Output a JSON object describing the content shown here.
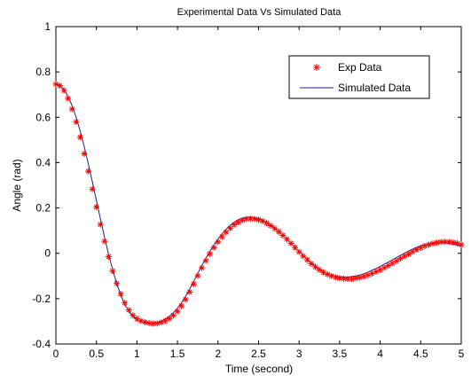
{
  "chart_data": {
    "type": "line",
    "title": "Experimental Data Vs Simulated Data",
    "xlabel": "Time (second)",
    "ylabel": "Angle (rad)",
    "xlim": [
      0,
      5
    ],
    "ylim": [
      -0.4,
      1
    ],
    "xticks": [
      0,
      0.5,
      1,
      1.5,
      2,
      2.5,
      3,
      3.5,
      4,
      4.5,
      5
    ],
    "yticks": [
      -0.4,
      -0.2,
      0,
      0.2,
      0.4,
      0.6,
      0.8,
      1
    ],
    "xtick_labels": [
      "0",
      "0.5",
      "1",
      "1.5",
      "2",
      "2.5",
      "3",
      "3.5",
      "4",
      "4.5",
      "5"
    ],
    "ytick_labels": [
      "-0.4",
      "-0.2",
      "0",
      "0.2",
      "0.4",
      "0.6",
      "0.8",
      "1"
    ],
    "grid": false,
    "legend_position": "top-right",
    "series": [
      {
        "name": "Exp Data",
        "style": "marker",
        "marker": "asterisk",
        "color": "#ff0000",
        "x": [
          0.0,
          0.05,
          0.1,
          0.15,
          0.2,
          0.25,
          0.3,
          0.35,
          0.4,
          0.45,
          0.5,
          0.55,
          0.6,
          0.65,
          0.7,
          0.75,
          0.8,
          0.85,
          0.9,
          0.95,
          1.0,
          1.05,
          1.1,
          1.15,
          1.2,
          1.25,
          1.3,
          1.35,
          1.4,
          1.45,
          1.5,
          1.55,
          1.6,
          1.65,
          1.7,
          1.75,
          1.8,
          1.85,
          1.9,
          1.95,
          2.0,
          2.05,
          2.1,
          2.15,
          2.2,
          2.25,
          2.3,
          2.35,
          2.4,
          2.45,
          2.5,
          2.55,
          2.6,
          2.65,
          2.7,
          2.75,
          2.8,
          2.85,
          2.9,
          2.95,
          3.0,
          3.05,
          3.1,
          3.15,
          3.2,
          3.25,
          3.3,
          3.35,
          3.4,
          3.45,
          3.5,
          3.55,
          3.6,
          3.65,
          3.7,
          3.75,
          3.8,
          3.85,
          3.9,
          3.95,
          4.0,
          4.05,
          4.1,
          4.15,
          4.2,
          4.25,
          4.3,
          4.35,
          4.4,
          4.45,
          4.5,
          4.55,
          4.6,
          4.65,
          4.7,
          4.75,
          4.8,
          4.85,
          4.9,
          4.95,
          5.0
        ],
        "y": [
          0.746,
          0.739,
          0.718,
          0.683,
          0.636,
          0.579,
          0.512,
          0.439,
          0.362,
          0.283,
          0.204,
          0.127,
          0.053,
          -0.015,
          -0.078,
          -0.133,
          -0.18,
          -0.219,
          -0.25,
          -0.273,
          -0.289,
          -0.298,
          -0.304,
          -0.308,
          -0.31,
          -0.309,
          -0.305,
          -0.298,
          -0.288,
          -0.274,
          -0.256,
          -0.232,
          -0.204,
          -0.171,
          -0.135,
          -0.099,
          -0.064,
          -0.032,
          -0.002,
          0.025,
          0.05,
          0.073,
          0.093,
          0.111,
          0.126,
          0.137,
          0.146,
          0.151,
          0.152,
          0.151,
          0.148,
          0.142,
          0.133,
          0.122,
          0.109,
          0.095,
          0.079,
          0.062,
          0.044,
          0.025,
          0.006,
          -0.012,
          -0.029,
          -0.046,
          -0.06,
          -0.073,
          -0.084,
          -0.093,
          -0.1,
          -0.106,
          -0.11,
          -0.112,
          -0.113,
          -0.113,
          -0.11,
          -0.107,
          -0.102,
          -0.096,
          -0.089,
          -0.081,
          -0.073,
          -0.064,
          -0.054,
          -0.044,
          -0.034,
          -0.023,
          -0.013,
          -0.003,
          0.007,
          0.016,
          0.024,
          0.032,
          0.038,
          0.043,
          0.047,
          0.05,
          0.051,
          0.05,
          0.048,
          0.044,
          0.038
        ]
      },
      {
        "name": "Simulated Data",
        "style": "line",
        "color": "#1f1f8f",
        "x": [
          0.0,
          0.05,
          0.1,
          0.15,
          0.2,
          0.25,
          0.3,
          0.35,
          0.4,
          0.45,
          0.5,
          0.55,
          0.6,
          0.65,
          0.7,
          0.75,
          0.8,
          0.85,
          0.9,
          0.95,
          1.0,
          1.05,
          1.1,
          1.15,
          1.2,
          1.25,
          1.3,
          1.35,
          1.4,
          1.45,
          1.5,
          1.55,
          1.6,
          1.65,
          1.7,
          1.75,
          1.8,
          1.85,
          1.9,
          1.95,
          2.0,
          2.05,
          2.1,
          2.15,
          2.2,
          2.25,
          2.3,
          2.35,
          2.4,
          2.45,
          2.5,
          2.55,
          2.6,
          2.65,
          2.7,
          2.75,
          2.8,
          2.85,
          2.9,
          2.95,
          3.0,
          3.05,
          3.1,
          3.15,
          3.2,
          3.25,
          3.3,
          3.35,
          3.4,
          3.45,
          3.5,
          3.55,
          3.6,
          3.65,
          3.7,
          3.75,
          3.8,
          3.85,
          3.9,
          3.95,
          4.0,
          4.05,
          4.1,
          4.15,
          4.2,
          4.25,
          4.3,
          4.35,
          4.4,
          4.45,
          4.5,
          4.55,
          4.6,
          4.65,
          4.7,
          4.75,
          4.8,
          4.85,
          4.9,
          4.95,
          5.0
        ],
        "y": [
          0.746,
          0.74,
          0.722,
          0.692,
          0.651,
          0.6,
          0.539,
          0.47,
          0.395,
          0.315,
          0.233,
          0.151,
          0.071,
          -0.004,
          -0.073,
          -0.133,
          -0.184,
          -0.225,
          -0.256,
          -0.278,
          -0.293,
          -0.302,
          -0.307,
          -0.309,
          -0.308,
          -0.305,
          -0.299,
          -0.29,
          -0.278,
          -0.262,
          -0.242,
          -0.218,
          -0.19,
          -0.158,
          -0.124,
          -0.089,
          -0.055,
          -0.022,
          0.009,
          0.037,
          0.063,
          0.086,
          0.106,
          0.123,
          0.137,
          0.148,
          0.155,
          0.159,
          0.16,
          0.158,
          0.154,
          0.147,
          0.137,
          0.125,
          0.111,
          0.096,
          0.08,
          0.062,
          0.044,
          0.026,
          0.008,
          -0.01,
          -0.027,
          -0.043,
          -0.057,
          -0.07,
          -0.081,
          -0.089,
          -0.096,
          -0.101,
          -0.104,
          -0.105,
          -0.105,
          -0.103,
          -0.1,
          -0.096,
          -0.09,
          -0.083,
          -0.075,
          -0.067,
          -0.058,
          -0.048,
          -0.039,
          -0.029,
          -0.019,
          -0.009,
          0.001,
          0.01,
          0.018,
          0.026,
          0.032,
          0.038,
          0.042,
          0.045,
          0.047,
          0.047,
          0.046,
          0.044,
          0.04,
          0.036,
          0.031
        ]
      }
    ]
  }
}
